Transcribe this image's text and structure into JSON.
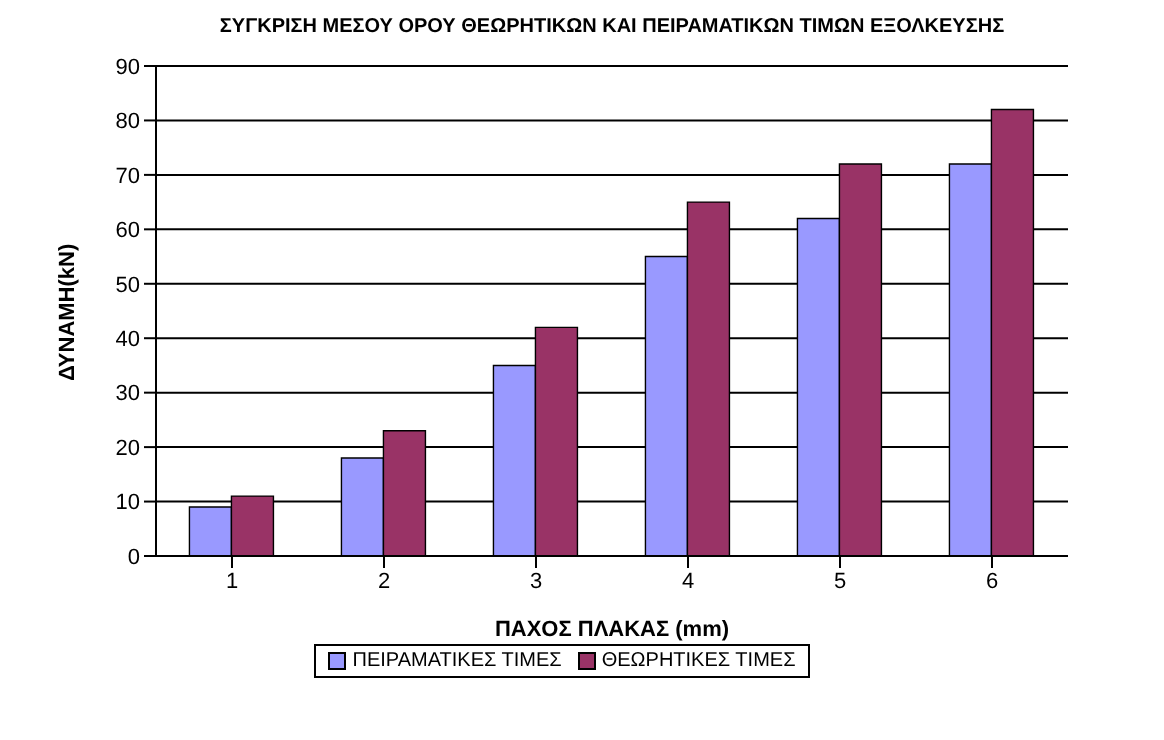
{
  "chart_data": {
    "type": "bar",
    "title": "ΣΥΓΚΡΙΣΗ ΜΕΣΟΥ ΟΡΟΥ ΘΕΩΡΗΤΙΚΩΝ ΚΑΙ ΠΕΙΡΑΜΑΤΙΚΩΝ ΤΙΜΩΝ ΕΞΟΛΚΕΥΣΗΣ",
    "xlabel": "ΠΑΧΟΣ ΠΛΑΚΑΣ (mm)",
    "ylabel": "ΔΥΝΑΜΗ(kN)",
    "categories": [
      "1",
      "2",
      "3",
      "4",
      "5",
      "6"
    ],
    "series": [
      {
        "name": "ΠΕΙΡΑΜΑΤΙΚΕΣ ΤΙΜΕΣ",
        "color": "#9999ff",
        "values": [
          9,
          18,
          35,
          55,
          62,
          72
        ]
      },
      {
        "name": "ΘΕΩΡΗΤΙΚΕΣ ΤΙΜΕΣ",
        "color": "#993366",
        "values": [
          11,
          23,
          42,
          65,
          72,
          82
        ]
      }
    ],
    "ylim": [
      0,
      90
    ],
    "yticks": [
      0,
      10,
      20,
      30,
      40,
      50,
      60,
      70,
      80,
      90
    ],
    "grid": "y",
    "legend": "bottom"
  }
}
